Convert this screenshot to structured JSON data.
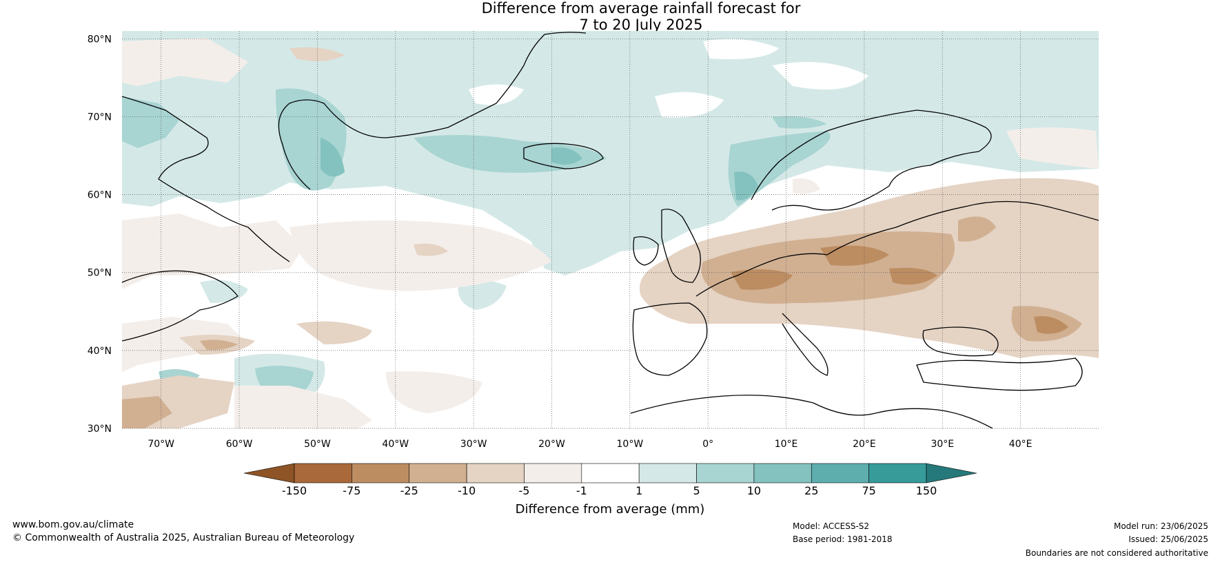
{
  "title": {
    "line1": "Difference from average rainfall forecast for",
    "line2": "7 to 20 July 2025"
  },
  "map": {
    "lon_range": [
      -75,
      50
    ],
    "lat_range": [
      30,
      81
    ],
    "lat_ticks": [
      {
        "value": 30,
        "label": "30°N"
      },
      {
        "value": 40,
        "label": "40°N"
      },
      {
        "value": 50,
        "label": "50°N"
      },
      {
        "value": 60,
        "label": "60°N"
      },
      {
        "value": 70,
        "label": "70°N"
      },
      {
        "value": 80,
        "label": "80°N"
      }
    ],
    "lon_ticks": [
      {
        "value": -70,
        "label": "70°W"
      },
      {
        "value": -60,
        "label": "60°W"
      },
      {
        "value": -50,
        "label": "50°W"
      },
      {
        "value": -40,
        "label": "40°W"
      },
      {
        "value": -30,
        "label": "30°W"
      },
      {
        "value": -20,
        "label": "20°W"
      },
      {
        "value": -10,
        "label": "10°W"
      },
      {
        "value": 0,
        "label": "0°"
      },
      {
        "value": 10,
        "label": "10°E"
      },
      {
        "value": 20,
        "label": "20°E"
      },
      {
        "value": 30,
        "label": "30°E"
      },
      {
        "value": 40,
        "label": "40°E"
      }
    ],
    "gridlines": "dotted"
  },
  "colorbar": {
    "title": "Difference from average (mm)",
    "labels": [
      "-150",
      "-75",
      "-25",
      "-10",
      "-5",
      "-1",
      "1",
      "5",
      "10",
      "25",
      "75",
      "150"
    ],
    "colors": [
      "#a9693a",
      "#bd8d62",
      "#d1b092",
      "#e5d3c4",
      "#f4eeea",
      "#ffffff",
      "#d4e9e7",
      "#a8d4d2",
      "#83c2bf",
      "#5eaeae",
      "#379b9a"
    ],
    "extend_low": "#8e5425",
    "extend_high": "#26797a"
  },
  "footer": {
    "website": "www.bom.gov.au/climate",
    "copyright": "© Commonwealth of Australia 2025, Australian Bureau of Meteorology",
    "model": "Model: ACCESS-S2",
    "base_period": "Base period: 1981-2018",
    "model_run": "Model run: 23/06/2025",
    "issued": "Issued: 25/06/2025",
    "disclaimer": "Boundaries are not considered authoritative"
  }
}
